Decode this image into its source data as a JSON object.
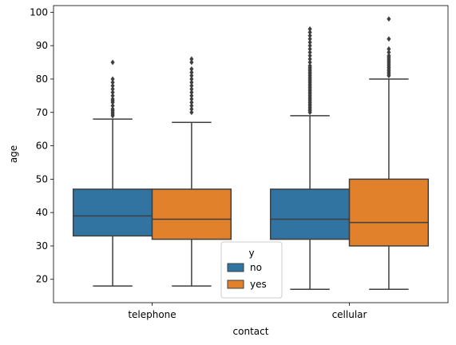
{
  "chart_data": {
    "type": "box",
    "xlabel": "contact",
    "ylabel": "age",
    "categories": [
      "telephone",
      "cellular"
    ],
    "ylim": [
      13,
      102
    ],
    "yticks": [
      20,
      30,
      40,
      50,
      60,
      70,
      80,
      90,
      100
    ],
    "grid": false,
    "legend": {
      "title": "y",
      "placement": "lower-center"
    },
    "series": [
      {
        "name": "no",
        "color": "#3274a1",
        "boxes": [
          {
            "category": "telephone",
            "whisker_low": 18,
            "q1": 33,
            "median": 39,
            "q3": 47,
            "whisker_high": 68,
            "outliers": [
              69,
              69.5,
              70,
              70.5,
              71,
              72,
              73,
              73.5,
              74,
              75,
              76,
              77,
              78,
              79,
              80,
              85
            ]
          },
          {
            "category": "cellular",
            "whisker_low": 17,
            "q1": 32,
            "median": 38,
            "q3": 47,
            "whisker_high": 69,
            "outliers": [
              70,
              70.5,
              71,
              71.5,
              72,
              72.5,
              73,
              73.5,
              74,
              74.5,
              75,
              75.5,
              76,
              76.5,
              77,
              77.5,
              78,
              78.5,
              79,
              79.5,
              80,
              80.5,
              81,
              81.5,
              82,
              82.5,
              83,
              83.5,
              84,
              85,
              86,
              87,
              88,
              89,
              90,
              91,
              92,
              93,
              94,
              95
            ]
          }
        ]
      },
      {
        "name": "yes",
        "color": "#e1812c",
        "boxes": [
          {
            "category": "telephone",
            "whisker_low": 18,
            "q1": 32,
            "median": 38,
            "q3": 47,
            "whisker_high": 67,
            "outliers": [
              70,
              71,
              72,
              73,
              74,
              75,
              76,
              77,
              78,
              79,
              80,
              81,
              82,
              83,
              85,
              86
            ]
          },
          {
            "category": "cellular",
            "whisker_low": 17,
            "q1": 30,
            "median": 37,
            "q3": 50,
            "whisker_high": 80,
            "outliers": [
              81,
              81.5,
              82,
              82.5,
              83,
              83.5,
              84,
              84.5,
              85,
              85.5,
              86,
              86.5,
              87,
              88,
              89,
              92,
              98
            ]
          }
        ]
      }
    ]
  }
}
